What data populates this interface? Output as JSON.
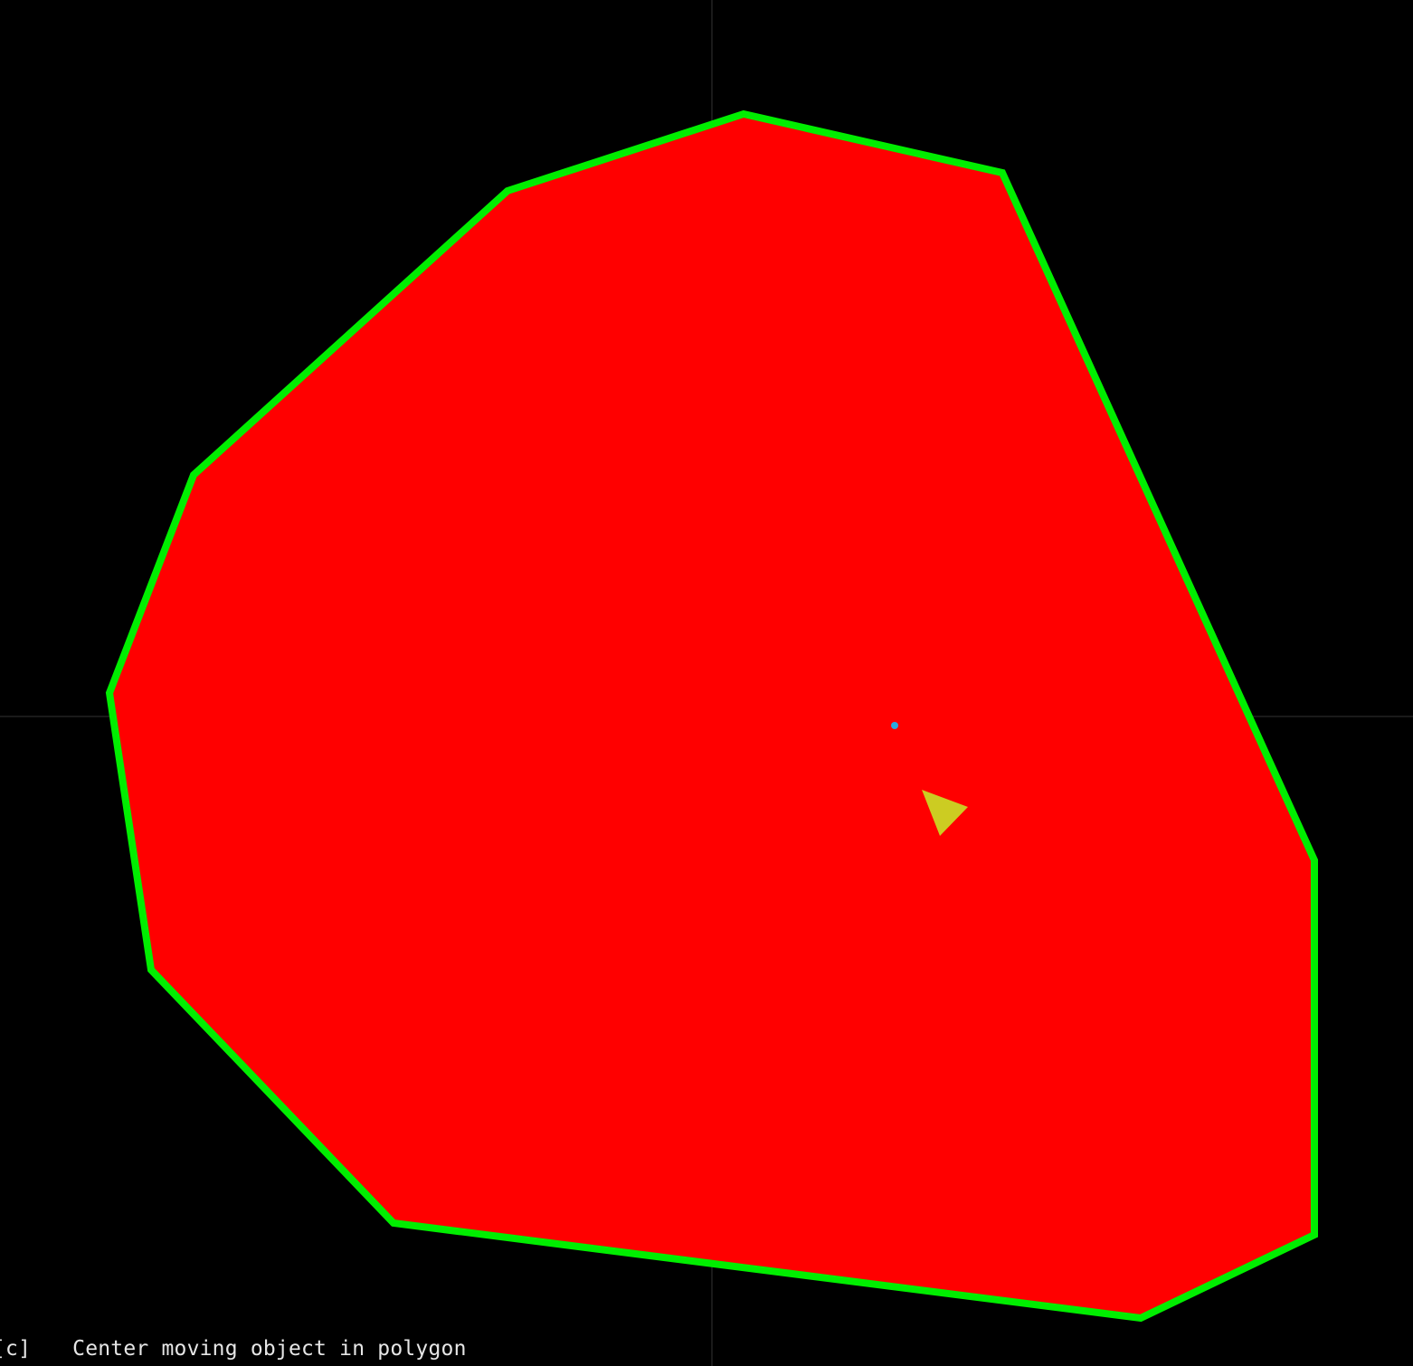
{
  "colors": {
    "background": "#000000",
    "axis_lines": "#333333",
    "polygon_fill": "#ff0000",
    "polygon_outline": "#00ee00",
    "moving_object": "#cccc22",
    "center_marker": "#2aa8e0",
    "help_text": "#e6e6e6"
  },
  "shapes": {
    "polygon": "polygon-region",
    "moving_object": "triangle-moving-object",
    "center_marker": "polygon-center-point"
  },
  "help": {
    "key": "[c]",
    "description": "Center moving object in polygon"
  }
}
